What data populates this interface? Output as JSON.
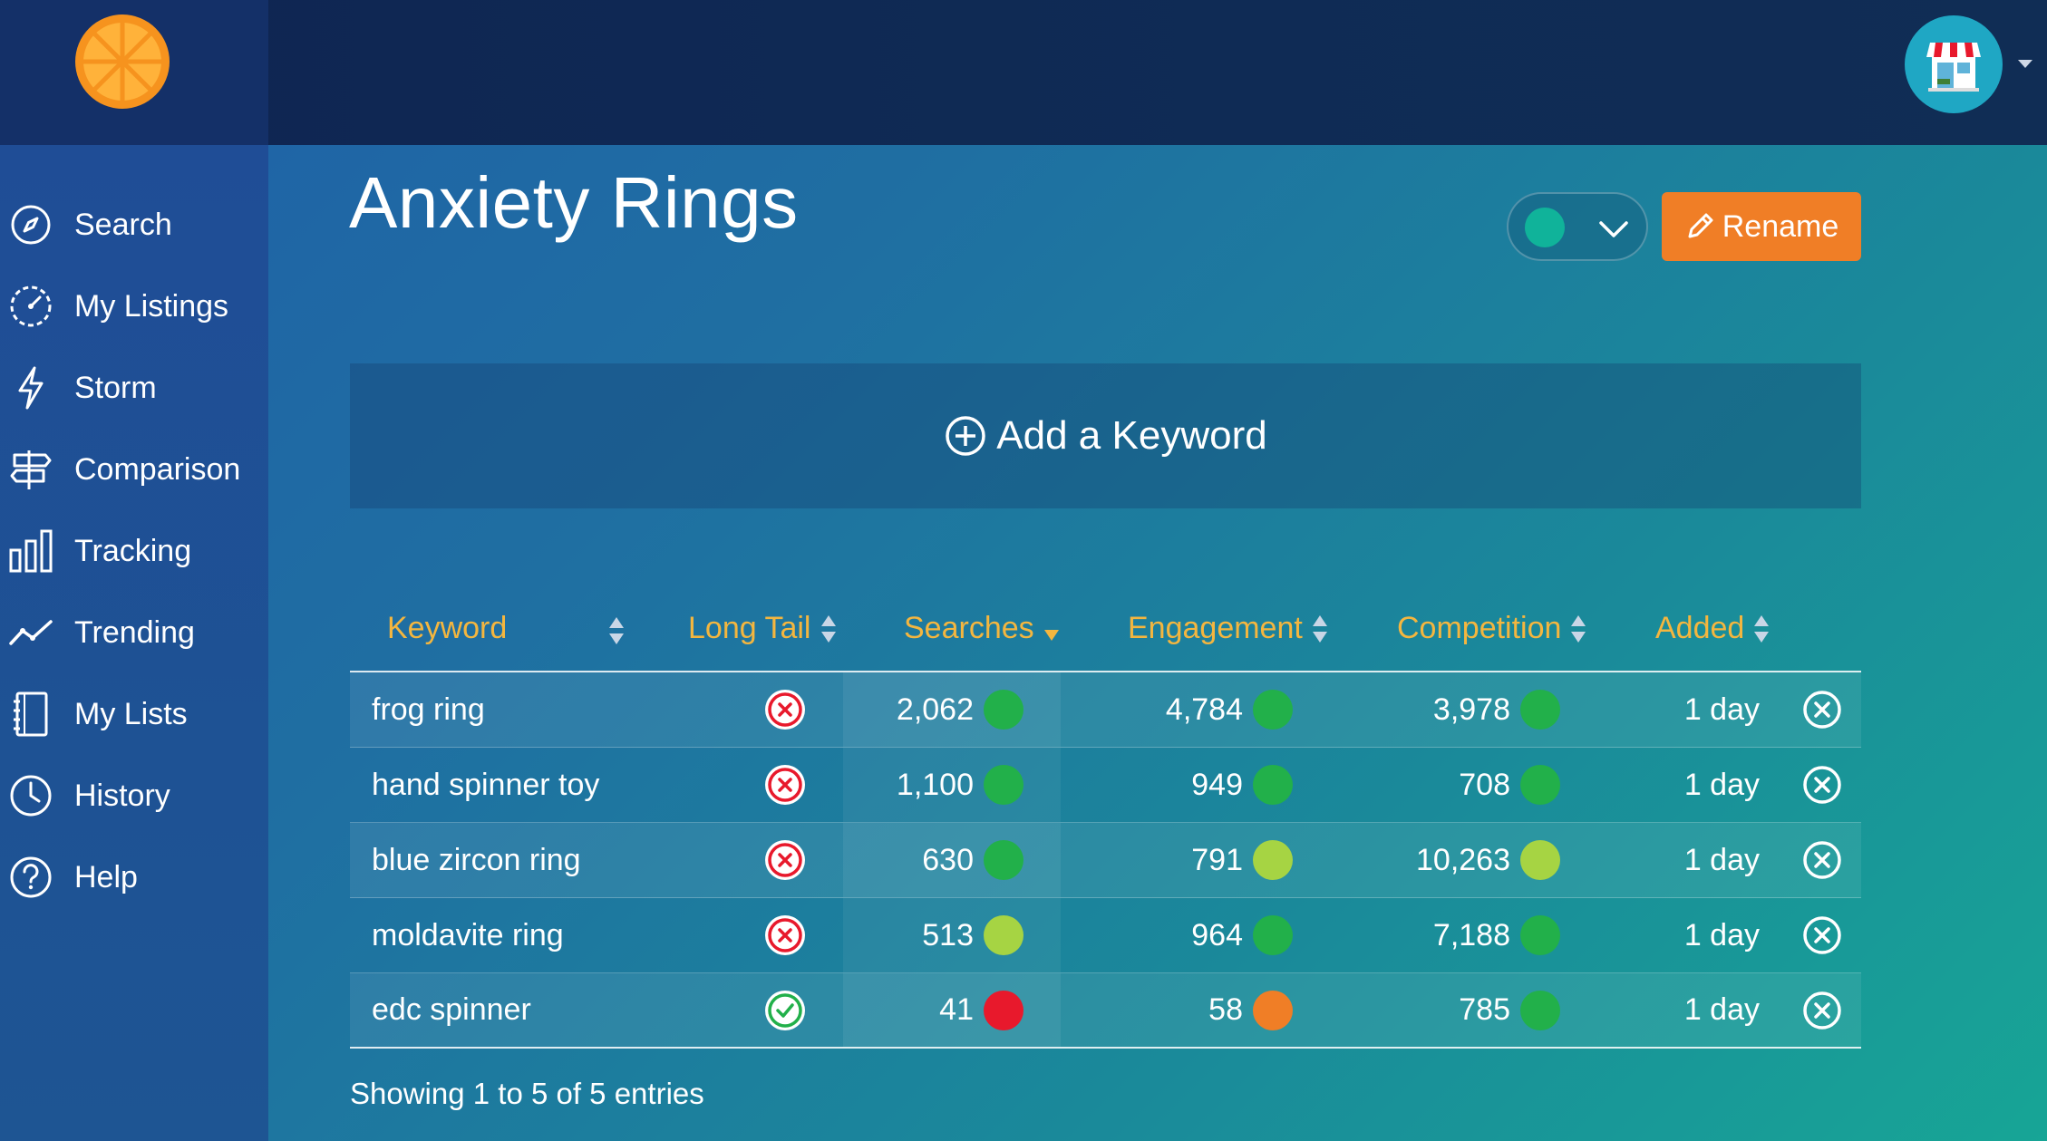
{
  "header": {
    "logo_icon": "orange-slice-logo",
    "avatar_icon": "storefront-icon",
    "avatar_caret_icon": "caret-down-icon"
  },
  "sidebar": {
    "items": [
      {
        "label": "Search",
        "icon": "compass-icon"
      },
      {
        "label": "My Listings",
        "icon": "speedometer-icon"
      },
      {
        "label": "Storm",
        "icon": "lightning-icon"
      },
      {
        "label": "Comparison",
        "icon": "signpost-icon"
      },
      {
        "label": "Tracking",
        "icon": "bar-chart-icon"
      },
      {
        "label": "Trending",
        "icon": "trend-line-icon"
      },
      {
        "label": "My Lists",
        "icon": "notebook-icon"
      },
      {
        "label": "History",
        "icon": "clock-icon"
      },
      {
        "label": "Help",
        "icon": "question-circle-icon"
      }
    ]
  },
  "page": {
    "title": "Anxiety Rings",
    "color_select_value": "#10b39a",
    "rename_label": "Rename",
    "add_keyword_label": "Add a Keyword"
  },
  "table": {
    "columns": [
      "Keyword",
      "Long Tail",
      "Searches",
      "Engagement",
      "Competition",
      "Added"
    ],
    "sorted_column": "Searches",
    "rows": [
      {
        "keyword": "frog ring",
        "long_tail": false,
        "searches": "2,062",
        "searches_color": "#22b04a",
        "engagement": "4,784",
        "engagement_color": "#22b04a",
        "competition": "3,978",
        "competition_color": "#22b04a",
        "added": "1 day"
      },
      {
        "keyword": "hand spinner toy",
        "long_tail": false,
        "searches": "1,100",
        "searches_color": "#22b04a",
        "engagement": "949",
        "engagement_color": "#22b04a",
        "competition": "708",
        "competition_color": "#22b04a",
        "added": "1 day"
      },
      {
        "keyword": "blue zircon ring",
        "long_tail": false,
        "searches": "630",
        "searches_color": "#22b04a",
        "engagement": "791",
        "engagement_color": "#a6d443",
        "competition": "10,263",
        "competition_color": "#a6d443",
        "added": "1 day"
      },
      {
        "keyword": "moldavite ring",
        "long_tail": false,
        "searches": "513",
        "searches_color": "#a6d443",
        "engagement": "964",
        "engagement_color": "#22b04a",
        "competition": "7,188",
        "competition_color": "#22b04a",
        "added": "1 day"
      },
      {
        "keyword": "edc spinner",
        "long_tail": true,
        "searches": "41",
        "searches_color": "#e8192c",
        "engagement": "58",
        "engagement_color": "#f07e26",
        "competition": "785",
        "competition_color": "#22b04a",
        "added": "1 day"
      }
    ],
    "footer": "Showing 1 to 5 of 5 entries"
  },
  "colors": {
    "accent_orange": "#f07e26",
    "header_gold": "#f4b63f",
    "long_tail_no": "#e8192c",
    "long_tail_yes": "#22b04a"
  }
}
